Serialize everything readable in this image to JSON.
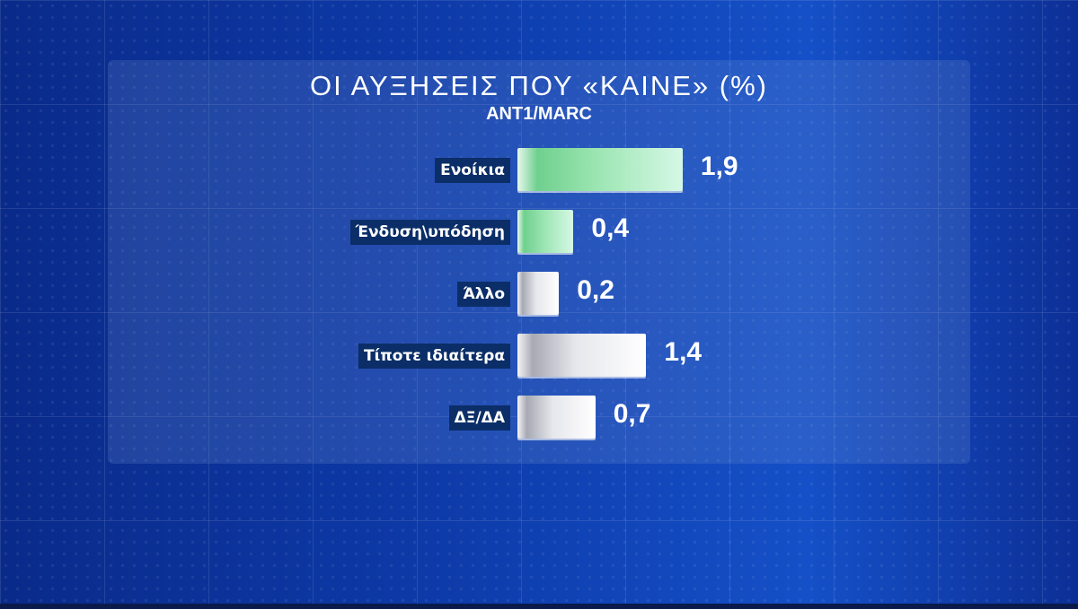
{
  "chart_data": {
    "type": "bar",
    "orientation": "horizontal",
    "title": "ΟΙ ΑΥΞΗΣΕΙΣ ΠΟΥ «ΚΑΙΝΕ» (%)",
    "subtitle": "ANT1/MARC",
    "categories": [
      "Ενοίκια",
      "Ένδυση\\υπόδηση",
      "Άλλο",
      "Τίποτε ιδιαίτερα",
      "ΔΞ/ΔΑ"
    ],
    "values": [
      1.9,
      0.4,
      0.2,
      1.4,
      0.7
    ],
    "value_labels": [
      "1,9",
      "0,4",
      "0,2",
      "1,4",
      "0,7"
    ],
    "bar_colors": [
      "#8fdfa8",
      "#8fdfa8",
      "#e8e9ee",
      "#e8e9ee",
      "#e8e9ee"
    ]
  }
}
